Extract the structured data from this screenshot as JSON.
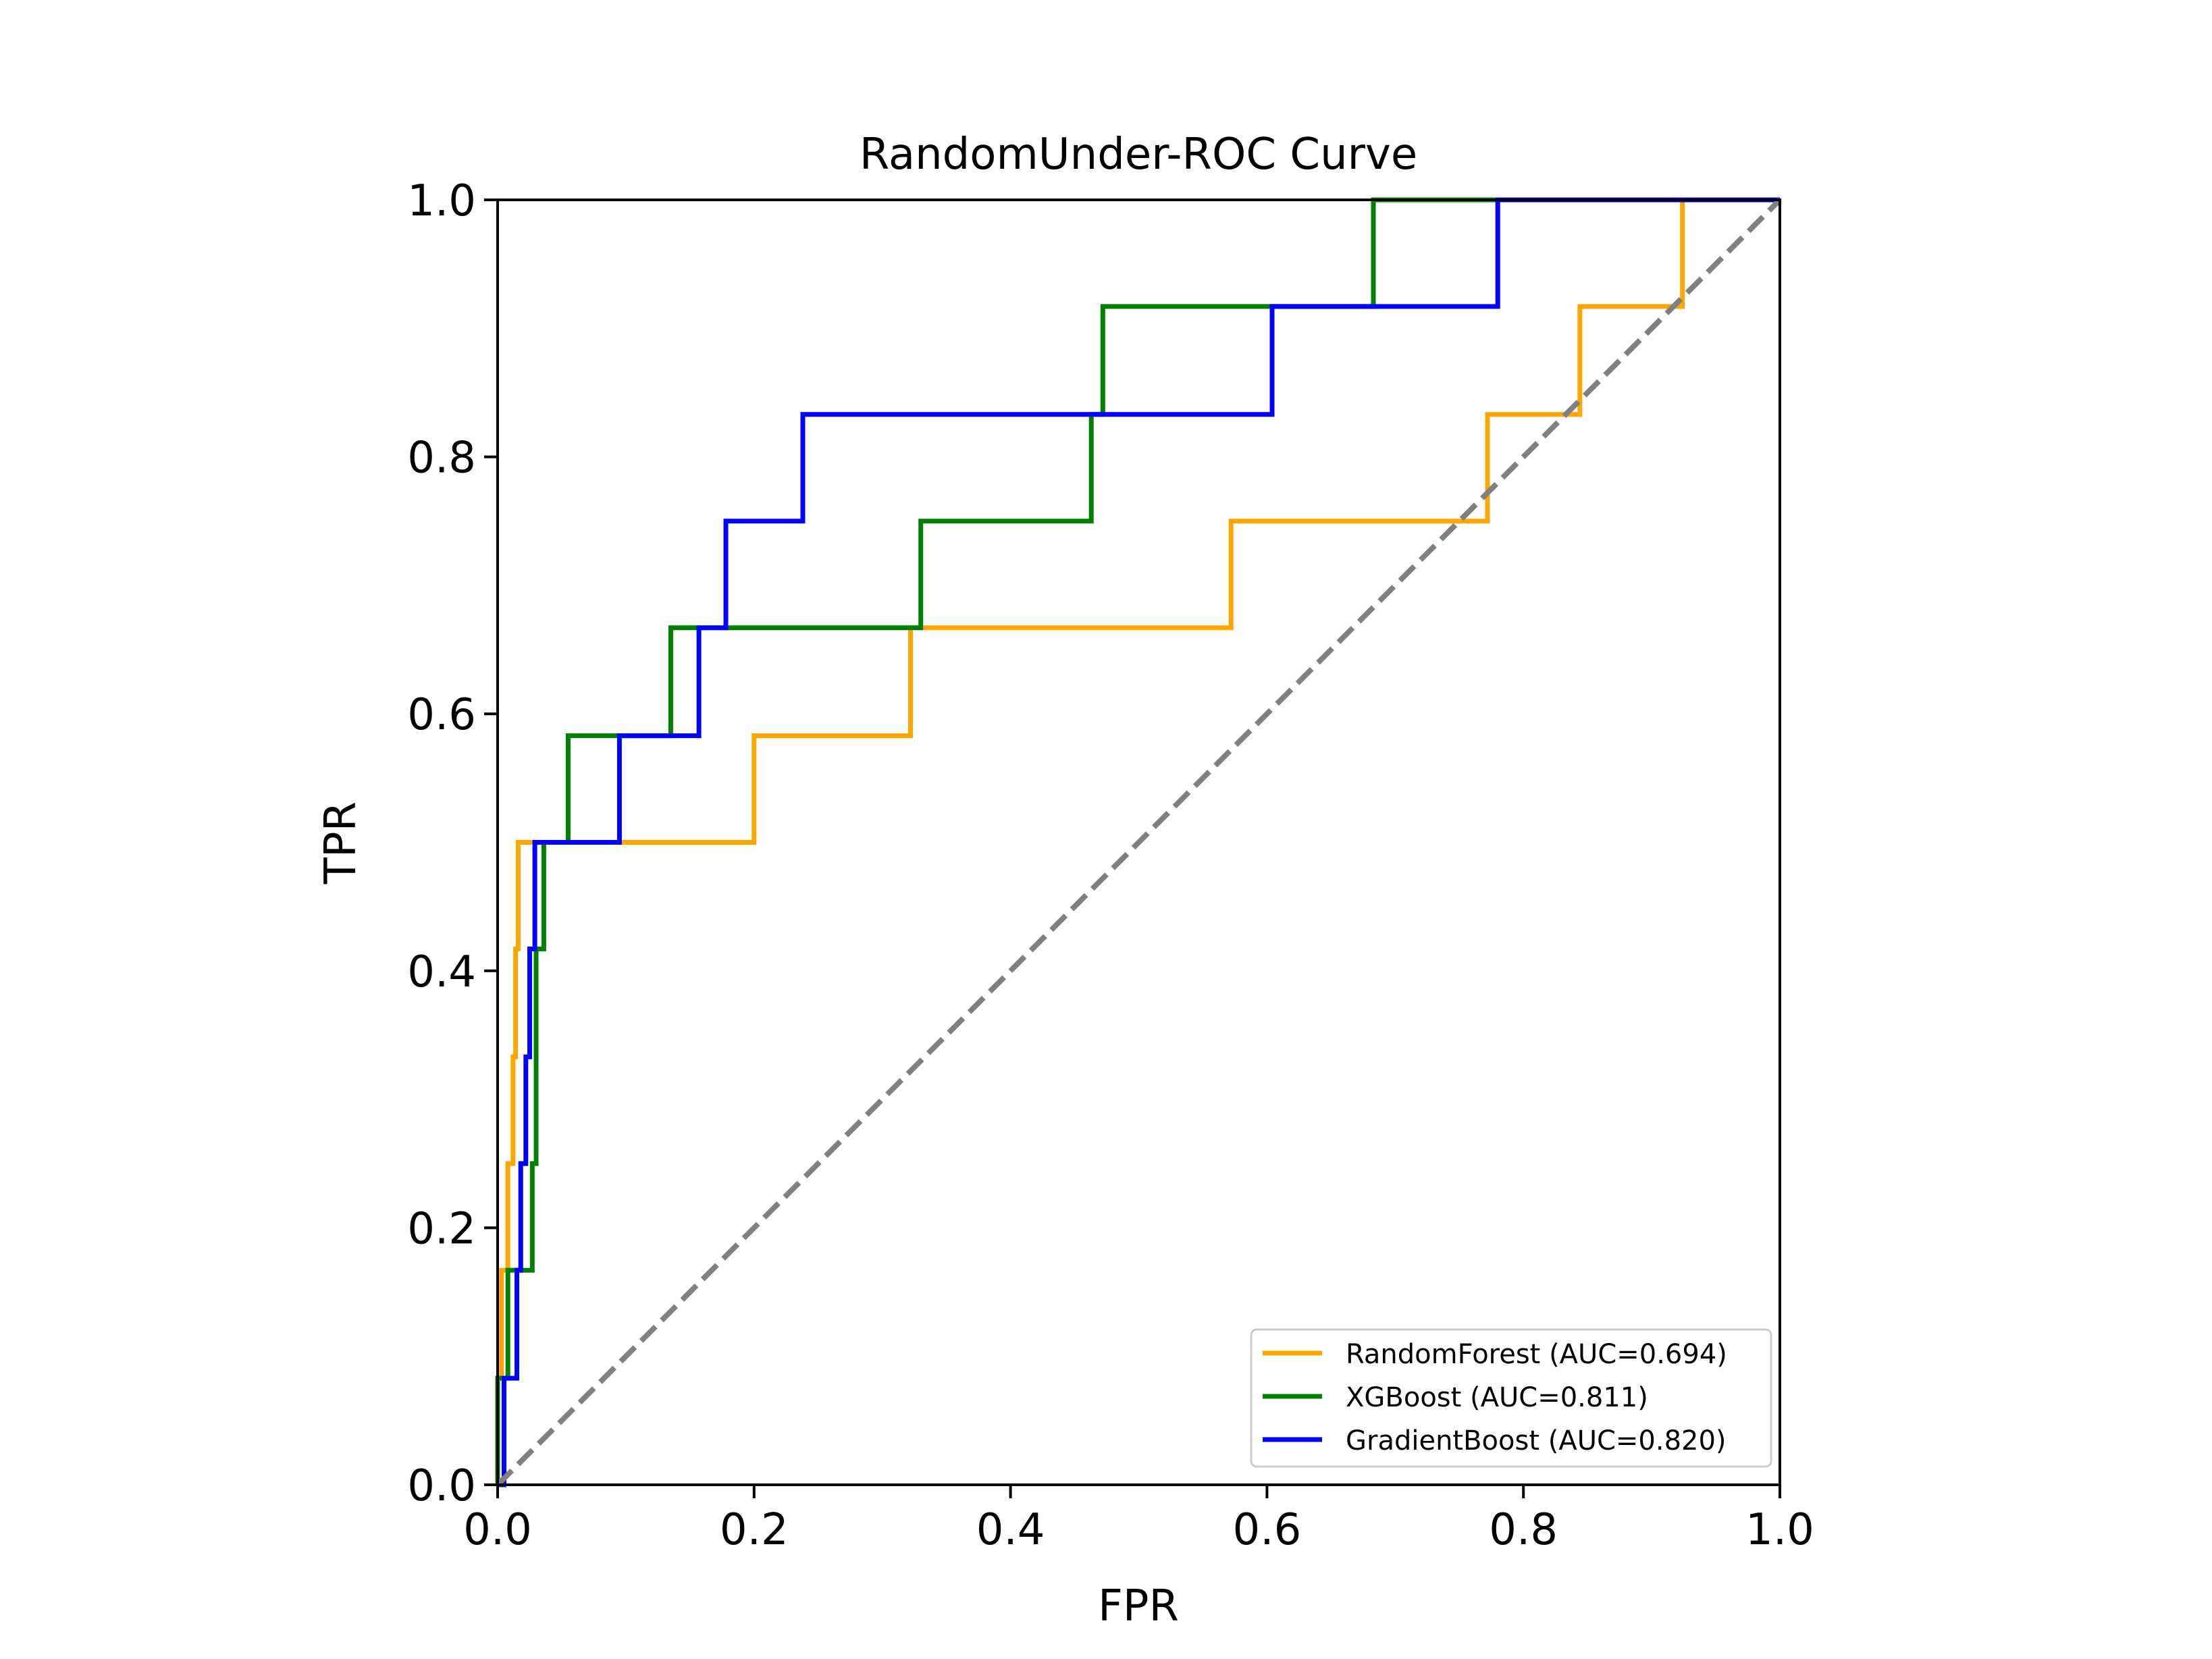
{
  "chart_data": {
    "type": "line",
    "title": "RandomUnder-ROC Curve",
    "xlabel": "FPR",
    "ylabel": "TPR",
    "xlim": [
      0,
      1
    ],
    "ylim": [
      0,
      1
    ],
    "x_ticks": [
      "0.0",
      "0.2",
      "0.4",
      "0.6",
      "0.8",
      "1.0"
    ],
    "y_ticks": [
      "0.0",
      "0.2",
      "0.4",
      "0.6",
      "0.8",
      "1.0"
    ],
    "grid": false,
    "legend_position": "lower-right",
    "series": [
      {
        "name": "RandomForest (AUC=0.694)",
        "color": "#FFA500",
        "points": [
          [
            0.0,
            0.0
          ],
          [
            0.0,
            0.083
          ],
          [
            0.003,
            0.083
          ],
          [
            0.003,
            0.167
          ],
          [
            0.008,
            0.167
          ],
          [
            0.008,
            0.25
          ],
          [
            0.012,
            0.25
          ],
          [
            0.012,
            0.333
          ],
          [
            0.014,
            0.333
          ],
          [
            0.014,
            0.417
          ],
          [
            0.016,
            0.417
          ],
          [
            0.016,
            0.5
          ],
          [
            0.2,
            0.5
          ],
          [
            0.2,
            0.583
          ],
          [
            0.322,
            0.583
          ],
          [
            0.322,
            0.667
          ],
          [
            0.572,
            0.667
          ],
          [
            0.572,
            0.75
          ],
          [
            0.772,
            0.75
          ],
          [
            0.772,
            0.833
          ],
          [
            0.844,
            0.833
          ],
          [
            0.844,
            0.917
          ],
          [
            0.924,
            0.917
          ],
          [
            0.924,
            1.0
          ],
          [
            1.0,
            1.0
          ]
        ]
      },
      {
        "name": "XGBoost (AUC=0.811)",
        "color": "#008000",
        "points": [
          [
            0.0,
            0.0
          ],
          [
            0.0,
            0.083
          ],
          [
            0.008,
            0.083
          ],
          [
            0.008,
            0.167
          ],
          [
            0.027,
            0.167
          ],
          [
            0.027,
            0.25
          ],
          [
            0.03,
            0.25
          ],
          [
            0.03,
            0.333
          ],
          [
            0.03,
            0.417
          ],
          [
            0.036,
            0.417
          ],
          [
            0.036,
            0.5
          ],
          [
            0.055,
            0.5
          ],
          [
            0.055,
            0.583
          ],
          [
            0.135,
            0.583
          ],
          [
            0.135,
            0.667
          ],
          [
            0.33,
            0.667
          ],
          [
            0.33,
            0.75
          ],
          [
            0.463,
            0.75
          ],
          [
            0.463,
            0.833
          ],
          [
            0.472,
            0.833
          ],
          [
            0.472,
            0.917
          ],
          [
            0.683,
            0.917
          ],
          [
            0.683,
            1.0
          ],
          [
            1.0,
            1.0
          ]
        ]
      },
      {
        "name": "GradientBoost (AUC=0.820)",
        "color": "#0000FF",
        "points": [
          [
            0.0,
            0.0
          ],
          [
            0.005,
            0.0
          ],
          [
            0.005,
            0.083
          ],
          [
            0.015,
            0.083
          ],
          [
            0.015,
            0.167
          ],
          [
            0.018,
            0.167
          ],
          [
            0.018,
            0.25
          ],
          [
            0.022,
            0.25
          ],
          [
            0.022,
            0.333
          ],
          [
            0.025,
            0.333
          ],
          [
            0.025,
            0.417
          ],
          [
            0.029,
            0.417
          ],
          [
            0.029,
            0.5
          ],
          [
            0.095,
            0.5
          ],
          [
            0.095,
            0.583
          ],
          [
            0.157,
            0.583
          ],
          [
            0.157,
            0.667
          ],
          [
            0.178,
            0.667
          ],
          [
            0.178,
            0.75
          ],
          [
            0.238,
            0.75
          ],
          [
            0.238,
            0.833
          ],
          [
            0.604,
            0.833
          ],
          [
            0.604,
            0.917
          ],
          [
            0.78,
            0.917
          ],
          [
            0.78,
            1.0
          ],
          [
            1.0,
            1.0
          ]
        ]
      }
    ],
    "reference_line": {
      "color": "#808080",
      "style": "dashed",
      "points": [
        [
          0,
          0
        ],
        [
          1,
          1
        ]
      ]
    }
  }
}
